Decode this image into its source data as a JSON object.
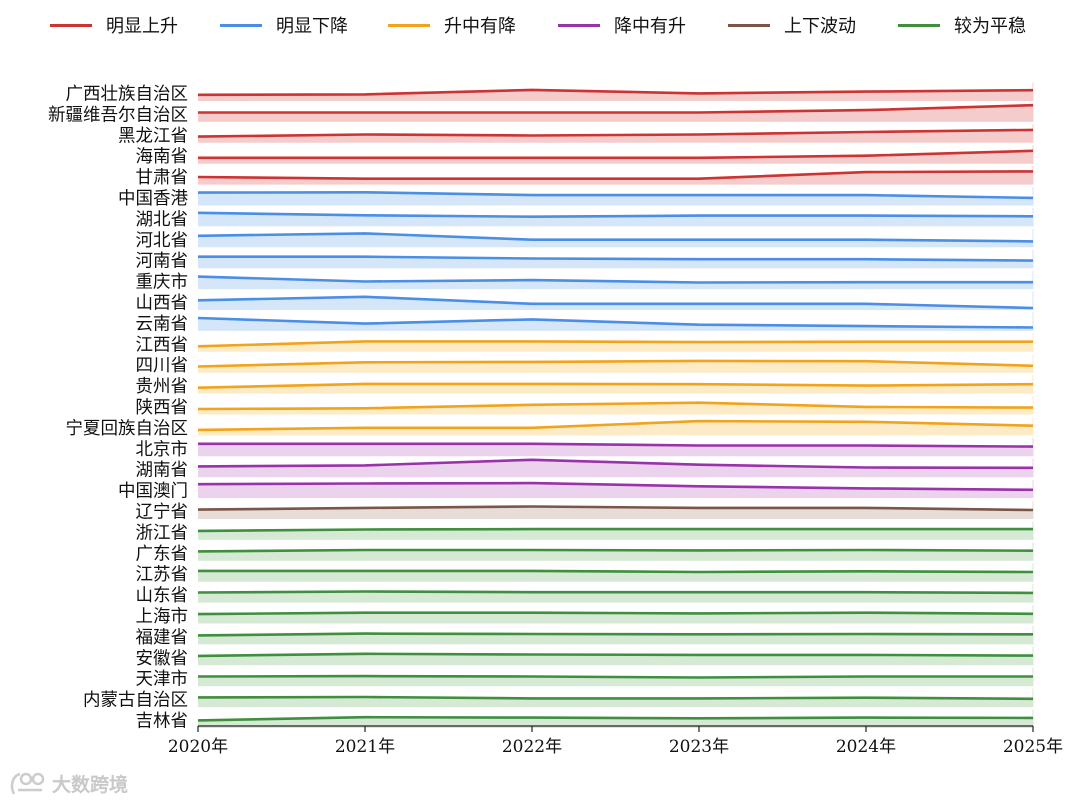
{
  "chart_data": {
    "type": "line",
    "x": [
      "2020年",
      "2021年",
      "2022年",
      "2023年",
      "2024年",
      "2025年"
    ],
    "xlabel": "",
    "ylabel": "",
    "legend_position": "top",
    "groups": [
      {
        "name": "明显上升",
        "color": "#cc3333",
        "fill": "#f5cccc"
      },
      {
        "name": "明显下降",
        "color": "#4a8ee6",
        "fill": "#d6e6f9"
      },
      {
        "name": "升中有降",
        "color": "#f2a31c",
        "fill": "#fdebc8"
      },
      {
        "name": "降中有升",
        "color": "#9933aa",
        "fill": "#ebd3ee"
      },
      {
        "name": "上下波动",
        "color": "#7a5548",
        "fill": "#e8dcd9"
      },
      {
        "name": "较为平稳",
        "color": "#3f8f3f",
        "fill": "#d5e9d5"
      }
    ],
    "series": [
      {
        "name": "广西壮族自治区",
        "group": 0,
        "values": [
          0.1,
          0.15,
          0.8,
          0.3,
          0.55,
          0.75
        ]
      },
      {
        "name": "新疆维吾尔自治区",
        "group": 0,
        "values": [
          0.55,
          0.55,
          0.55,
          0.55,
          0.9,
          1.6
        ]
      },
      {
        "name": "黑龙江省",
        "group": 0,
        "values": [
          0.1,
          0.4,
          0.25,
          0.4,
          0.75,
          1.05
        ]
      },
      {
        "name": "海南省",
        "group": 0,
        "values": [
          0.05,
          0.05,
          0.05,
          0.05,
          0.35,
          1.05
        ]
      },
      {
        "name": "甘肃省",
        "group": 0,
        "values": [
          0.3,
          0.05,
          0.05,
          0.05,
          1.0,
          1.1
        ]
      },
      {
        "name": "中国香港",
        "group": 1,
        "values": [
          1.05,
          1.1,
          0.7,
          0.7,
          0.7,
          0.3
        ]
      },
      {
        "name": "湖北省",
        "group": 1,
        "values": [
          1.15,
          0.8,
          0.6,
          0.75,
          0.75,
          0.65
        ]
      },
      {
        "name": "河北省",
        "group": 1,
        "values": [
          0.85,
          1.2,
          0.3,
          0.3,
          0.3,
          0.05
        ]
      },
      {
        "name": "河南省",
        "group": 1,
        "values": [
          0.85,
          0.85,
          0.6,
          0.5,
          0.5,
          0.3
        ]
      },
      {
        "name": "重庆市",
        "group": 1,
        "values": [
          1.0,
          0.3,
          0.5,
          0.15,
          0.2,
          0.2
        ]
      },
      {
        "name": "山西省",
        "group": 1,
        "values": [
          0.6,
          1.1,
          0.1,
          0.1,
          0.1,
          -0.5
        ]
      },
      {
        "name": "云南省",
        "group": 1,
        "values": [
          1.05,
          0.25,
          0.85,
          0.1,
          -0.1,
          -0.3
        ]
      },
      {
        "name": "江西省",
        "group": 2,
        "values": [
          0.0,
          0.7,
          0.7,
          0.6,
          0.65,
          0.65
        ]
      },
      {
        "name": "四川省",
        "group": 2,
        "values": [
          0.1,
          0.7,
          0.75,
          0.9,
          0.85,
          0.2
        ]
      },
      {
        "name": "贵州省",
        "group": 2,
        "values": [
          0.05,
          0.6,
          0.6,
          0.55,
          0.35,
          0.55
        ]
      },
      {
        "name": "陕西省",
        "group": 2,
        "values": [
          0.0,
          0.1,
          0.6,
          0.9,
          0.3,
          0.2
        ]
      },
      {
        "name": "宁夏回族自治区",
        "group": 2,
        "values": [
          0.0,
          0.3,
          0.3,
          1.25,
          1.15,
          0.6
        ]
      },
      {
        "name": "北京市",
        "group": 3,
        "values": [
          1.0,
          1.0,
          1.0,
          0.75,
          0.75,
          0.6
        ]
      },
      {
        "name": "湖南省",
        "group": 3,
        "values": [
          0.75,
          0.9,
          1.7,
          1.0,
          0.6,
          0.55
        ]
      },
      {
        "name": "中国澳门",
        "group": 3,
        "values": [
          1.2,
          1.3,
          1.35,
          0.9,
          0.6,
          0.4
        ]
      },
      {
        "name": "辽宁省",
        "group": 4,
        "values": [
          0.55,
          0.8,
          1.0,
          0.8,
          0.8,
          0.5
        ]
      },
      {
        "name": "浙江省",
        "group": 5,
        "values": [
          0.5,
          0.7,
          0.75,
          0.75,
          0.75,
          0.75
        ]
      },
      {
        "name": "广东省",
        "group": 5,
        "values": [
          0.55,
          0.75,
          0.75,
          0.7,
          0.75,
          0.65
        ]
      },
      {
        "name": "江苏省",
        "group": 5,
        "values": [
          0.75,
          0.75,
          0.75,
          0.6,
          0.7,
          0.6
        ]
      },
      {
        "name": "山东省",
        "group": 5,
        "values": [
          0.65,
          0.8,
          0.7,
          0.7,
          0.7,
          0.6
        ]
      },
      {
        "name": "上海市",
        "group": 5,
        "values": [
          0.55,
          0.75,
          0.75,
          0.65,
          0.75,
          0.6
        ]
      },
      {
        "name": "福建省",
        "group": 5,
        "values": [
          0.5,
          0.75,
          0.7,
          0.65,
          0.7,
          0.65
        ]
      },
      {
        "name": "安徽省",
        "group": 5,
        "values": [
          0.55,
          0.85,
          0.75,
          0.7,
          0.7,
          0.6
        ]
      },
      {
        "name": "天津市",
        "group": 5,
        "values": [
          0.6,
          0.65,
          0.6,
          0.45,
          0.6,
          0.6
        ]
      },
      {
        "name": "内蒙古自治区",
        "group": 5,
        "values": [
          0.6,
          0.65,
          0.45,
          0.45,
          0.55,
          0.4
        ]
      },
      {
        "name": "吉林省",
        "group": 5,
        "values": [
          0.3,
          0.75,
          0.7,
          0.6,
          0.7,
          0.65
        ]
      }
    ]
  },
  "watermark": {
    "text": "大数跨境"
  }
}
